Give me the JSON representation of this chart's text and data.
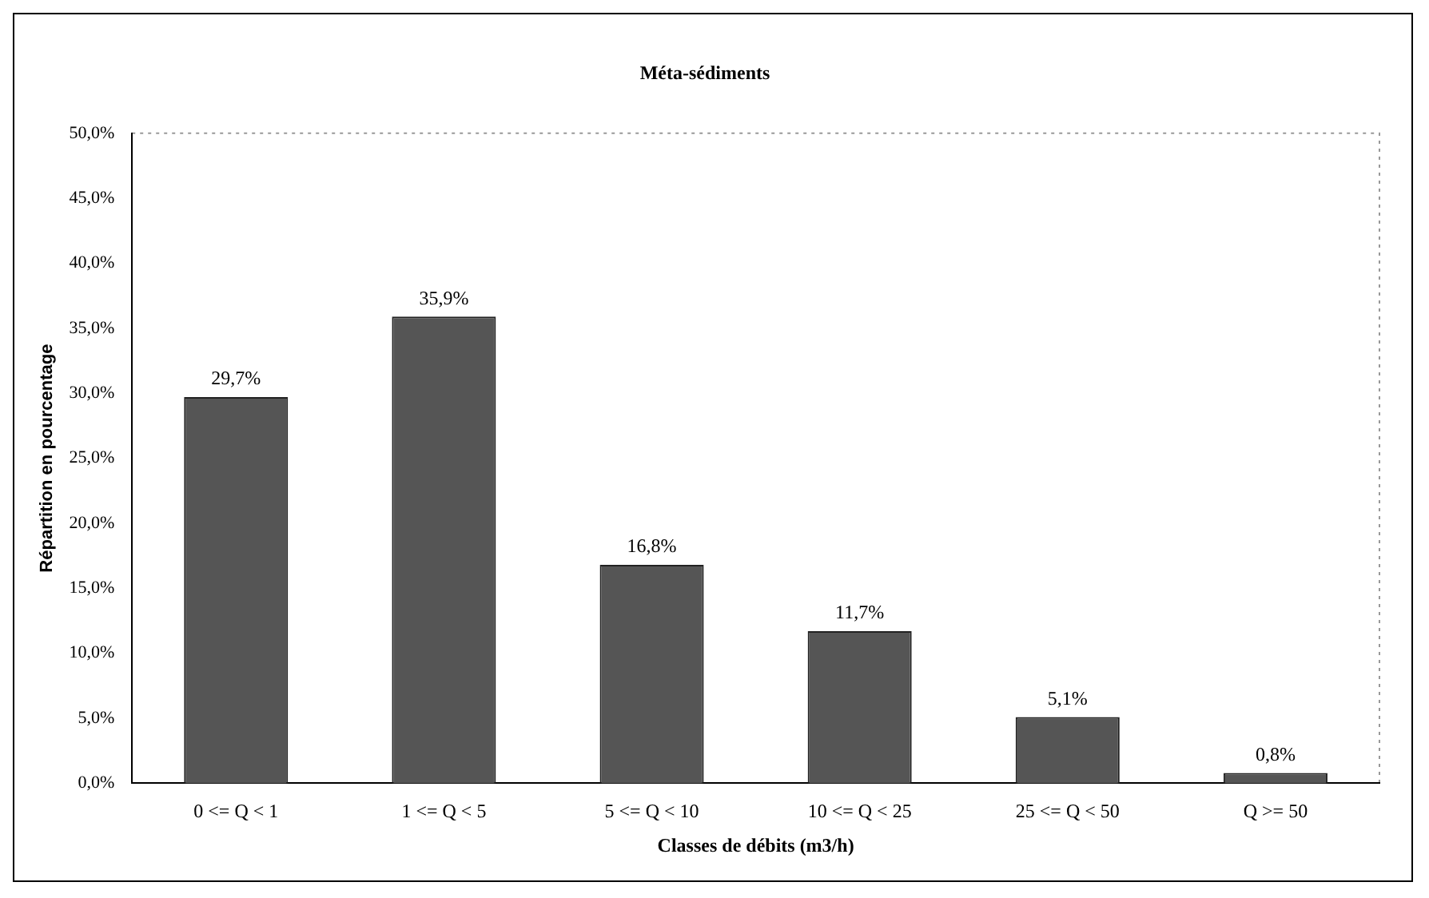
{
  "chart_data": {
    "type": "bar",
    "title": "Méta-sédiments",
    "xlabel": "Classes de débits (m3/h)",
    "ylabel": "Répartition en pourcentage",
    "categories": [
      "0 <= Q < 1",
      "1 <= Q < 5",
      "5 <= Q < 10",
      "10 <= Q < 25",
      "25 <= Q < 50",
      "Q >= 50"
    ],
    "values": [
      29.7,
      35.9,
      16.8,
      11.7,
      5.1,
      0.8
    ],
    "value_labels": [
      "29,7%",
      "35,9%",
      "16,8%",
      "11,7%",
      "5,1%",
      "0,8%"
    ],
    "color": "#555555",
    "ylim": [
      0,
      50
    ],
    "yticks": [
      {
        "value": 0,
        "label": "0,0%"
      },
      {
        "value": 5,
        "label": "5,0%"
      },
      {
        "value": 10,
        "label": "10,0%"
      },
      {
        "value": 15,
        "label": "15,0%"
      },
      {
        "value": 20,
        "label": "20,0%"
      },
      {
        "value": 25,
        "label": "25,0%"
      },
      {
        "value": 30,
        "label": "30,0%"
      },
      {
        "value": 35,
        "label": "35,0%"
      },
      {
        "value": 40,
        "label": "40,0%"
      },
      {
        "value": 45,
        "label": "45,0%"
      },
      {
        "value": 50,
        "label": "50,0%"
      }
    ],
    "legend": false,
    "grid": false
  }
}
